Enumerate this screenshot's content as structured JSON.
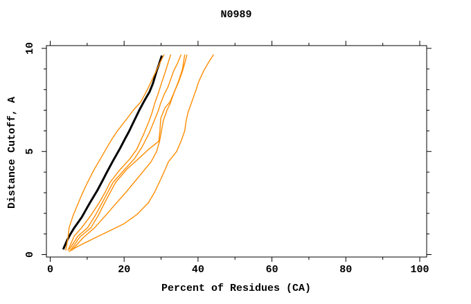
{
  "title": "N0989",
  "colors": {
    "background": "#ffffff",
    "frame": "#000000",
    "reference_line": "#000000",
    "model_line": "#ff8c00"
  },
  "chart_data": {
    "type": "line",
    "title": "N0989",
    "xlabel": "Percent of Residues (CA)",
    "ylabel": "Distance Cutoff, A",
    "xlim": [
      -1,
      102
    ],
    "ylim": [
      -0.15,
      10.2
    ],
    "x_ticks_major": [
      0,
      20,
      40,
      60,
      80,
      100
    ],
    "x_ticks_minor": [
      10,
      30,
      50,
      70,
      90
    ],
    "y_ticks_major": [
      0,
      5,
      10
    ],
    "y_ticks_minor": [
      1,
      2,
      3,
      4,
      6,
      7,
      8,
      9
    ],
    "grid": false,
    "legend_position": "none",
    "series": [
      {
        "name": "reference-curve",
        "color": "#000000",
        "width": 3,
        "points": [
          [
            3.5,
            0.25
          ],
          [
            4.6,
            0.7
          ],
          [
            5.5,
            1.0
          ],
          [
            6.5,
            1.3
          ],
          [
            8.5,
            1.8
          ],
          [
            9.6,
            2.15
          ],
          [
            10.7,
            2.5
          ],
          [
            12.7,
            3.1
          ],
          [
            14.2,
            3.6
          ],
          [
            15.2,
            3.95
          ],
          [
            17.0,
            4.55
          ],
          [
            18.9,
            5.15
          ],
          [
            20.2,
            5.6
          ],
          [
            21.4,
            6.0
          ],
          [
            22.6,
            6.45
          ],
          [
            24.1,
            7.0
          ],
          [
            25.6,
            7.5
          ],
          [
            26.9,
            7.9
          ],
          [
            27.8,
            8.3
          ],
          [
            28.8,
            8.9
          ],
          [
            29.4,
            9.2
          ],
          [
            30.2,
            9.65
          ]
        ]
      },
      {
        "name": "model-curve-1",
        "color": "#ff8c00",
        "width": 1.4,
        "points": [
          [
            4.2,
            0.2
          ],
          [
            4.8,
            0.8
          ],
          [
            5.1,
            1.3
          ],
          [
            6.2,
            1.9
          ],
          [
            7.6,
            2.5
          ],
          [
            8.8,
            3.0
          ],
          [
            10.1,
            3.5
          ],
          [
            11.8,
            4.1
          ],
          [
            13.6,
            4.65
          ],
          [
            15.2,
            5.15
          ],
          [
            16.7,
            5.6
          ],
          [
            18.2,
            6.0
          ],
          [
            20.8,
            6.6
          ],
          [
            22.5,
            7.0
          ],
          [
            24.5,
            7.4
          ],
          [
            26.3,
            8.0
          ],
          [
            28.0,
            8.65
          ],
          [
            29.3,
            9.15
          ],
          [
            30.8,
            9.7
          ]
        ]
      },
      {
        "name": "model-curve-2",
        "color": "#ff8c00",
        "width": 1.4,
        "points": [
          [
            4.8,
            0.2
          ],
          [
            6.5,
            0.9
          ],
          [
            8.5,
            1.3
          ],
          [
            11.0,
            1.9
          ],
          [
            13.2,
            2.5
          ],
          [
            14.8,
            3.0
          ],
          [
            16.2,
            3.5
          ],
          [
            18.8,
            4.1
          ],
          [
            21.6,
            4.65
          ],
          [
            23.4,
            5.1
          ],
          [
            25.2,
            5.8
          ],
          [
            26.8,
            6.5
          ],
          [
            27.6,
            6.9
          ],
          [
            28.3,
            7.35
          ],
          [
            29.2,
            7.8
          ],
          [
            30.1,
            8.3
          ],
          [
            31.4,
            9.0
          ],
          [
            32.6,
            9.7
          ]
        ]
      },
      {
        "name": "model-curve-3",
        "color": "#ff8c00",
        "width": 1.4,
        "points": [
          [
            5.2,
            0.25
          ],
          [
            7.5,
            0.9
          ],
          [
            10.1,
            1.3
          ],
          [
            12.2,
            1.9
          ],
          [
            14.0,
            2.5
          ],
          [
            15.5,
            3.0
          ],
          [
            17.0,
            3.5
          ],
          [
            20.0,
            4.1
          ],
          [
            22.8,
            4.65
          ],
          [
            24.8,
            5.2
          ],
          [
            26.8,
            5.9
          ],
          [
            28.4,
            6.6
          ],
          [
            29.3,
            7.0
          ],
          [
            29.9,
            7.35
          ],
          [
            30.9,
            7.8
          ],
          [
            31.8,
            8.1
          ],
          [
            33.4,
            8.9
          ],
          [
            34.5,
            9.3
          ],
          [
            35.4,
            9.7
          ]
        ]
      },
      {
        "name": "model-curve-4",
        "color": "#ff8c00",
        "width": 1.4,
        "points": [
          [
            5.5,
            0.2
          ],
          [
            8.0,
            0.85
          ],
          [
            11.0,
            1.3
          ],
          [
            13.0,
            1.9
          ],
          [
            14.7,
            2.5
          ],
          [
            16.2,
            3.0
          ],
          [
            17.7,
            3.5
          ],
          [
            20.8,
            4.15
          ],
          [
            23.9,
            4.65
          ],
          [
            26.6,
            5.1
          ],
          [
            29.4,
            5.5
          ],
          [
            29.7,
            6.0
          ],
          [
            29.9,
            6.6
          ],
          [
            31.0,
            7.1
          ],
          [
            32.4,
            7.4
          ],
          [
            33.6,
            7.9
          ],
          [
            34.8,
            8.45
          ],
          [
            35.8,
            9.0
          ],
          [
            36.4,
            9.7
          ]
        ]
      },
      {
        "name": "model-curve-5",
        "color": "#ff8c00",
        "width": 1.4,
        "points": [
          [
            5.8,
            0.2
          ],
          [
            8.8,
            0.8
          ],
          [
            12.0,
            1.3
          ],
          [
            15.0,
            1.9
          ],
          [
            17.9,
            2.5
          ],
          [
            20.4,
            3.0
          ],
          [
            22.7,
            3.5
          ],
          [
            25.0,
            4.0
          ],
          [
            27.3,
            4.5
          ],
          [
            28.8,
            5.0
          ],
          [
            29.6,
            5.5
          ],
          [
            30.1,
            6.0
          ],
          [
            30.6,
            6.5
          ],
          [
            31.6,
            7.0
          ],
          [
            32.4,
            7.3
          ],
          [
            33.6,
            7.9
          ],
          [
            34.8,
            8.4
          ],
          [
            35.8,
            8.9
          ],
          [
            36.6,
            9.4
          ],
          [
            37.0,
            9.7
          ]
        ]
      },
      {
        "name": "model-curve-6",
        "color": "#ff8c00",
        "width": 1.4,
        "points": [
          [
            5.0,
            0.15
          ],
          [
            8.0,
            0.45
          ],
          [
            12.0,
            0.8
          ],
          [
            16.0,
            1.15
          ],
          [
            20.0,
            1.5
          ],
          [
            23.5,
            1.95
          ],
          [
            26.5,
            2.5
          ],
          [
            28.2,
            3.0
          ],
          [
            29.5,
            3.5
          ],
          [
            30.8,
            4.0
          ],
          [
            32.0,
            4.5
          ],
          [
            34.2,
            5.0
          ],
          [
            35.4,
            5.5
          ],
          [
            36.4,
            6.0
          ],
          [
            36.8,
            6.5
          ],
          [
            37.3,
            6.9
          ],
          [
            38.2,
            7.35
          ],
          [
            39.5,
            8.0
          ],
          [
            40.1,
            8.35
          ],
          [
            41.5,
            8.9
          ],
          [
            42.8,
            9.3
          ],
          [
            44.2,
            9.7
          ]
        ]
      }
    ]
  }
}
